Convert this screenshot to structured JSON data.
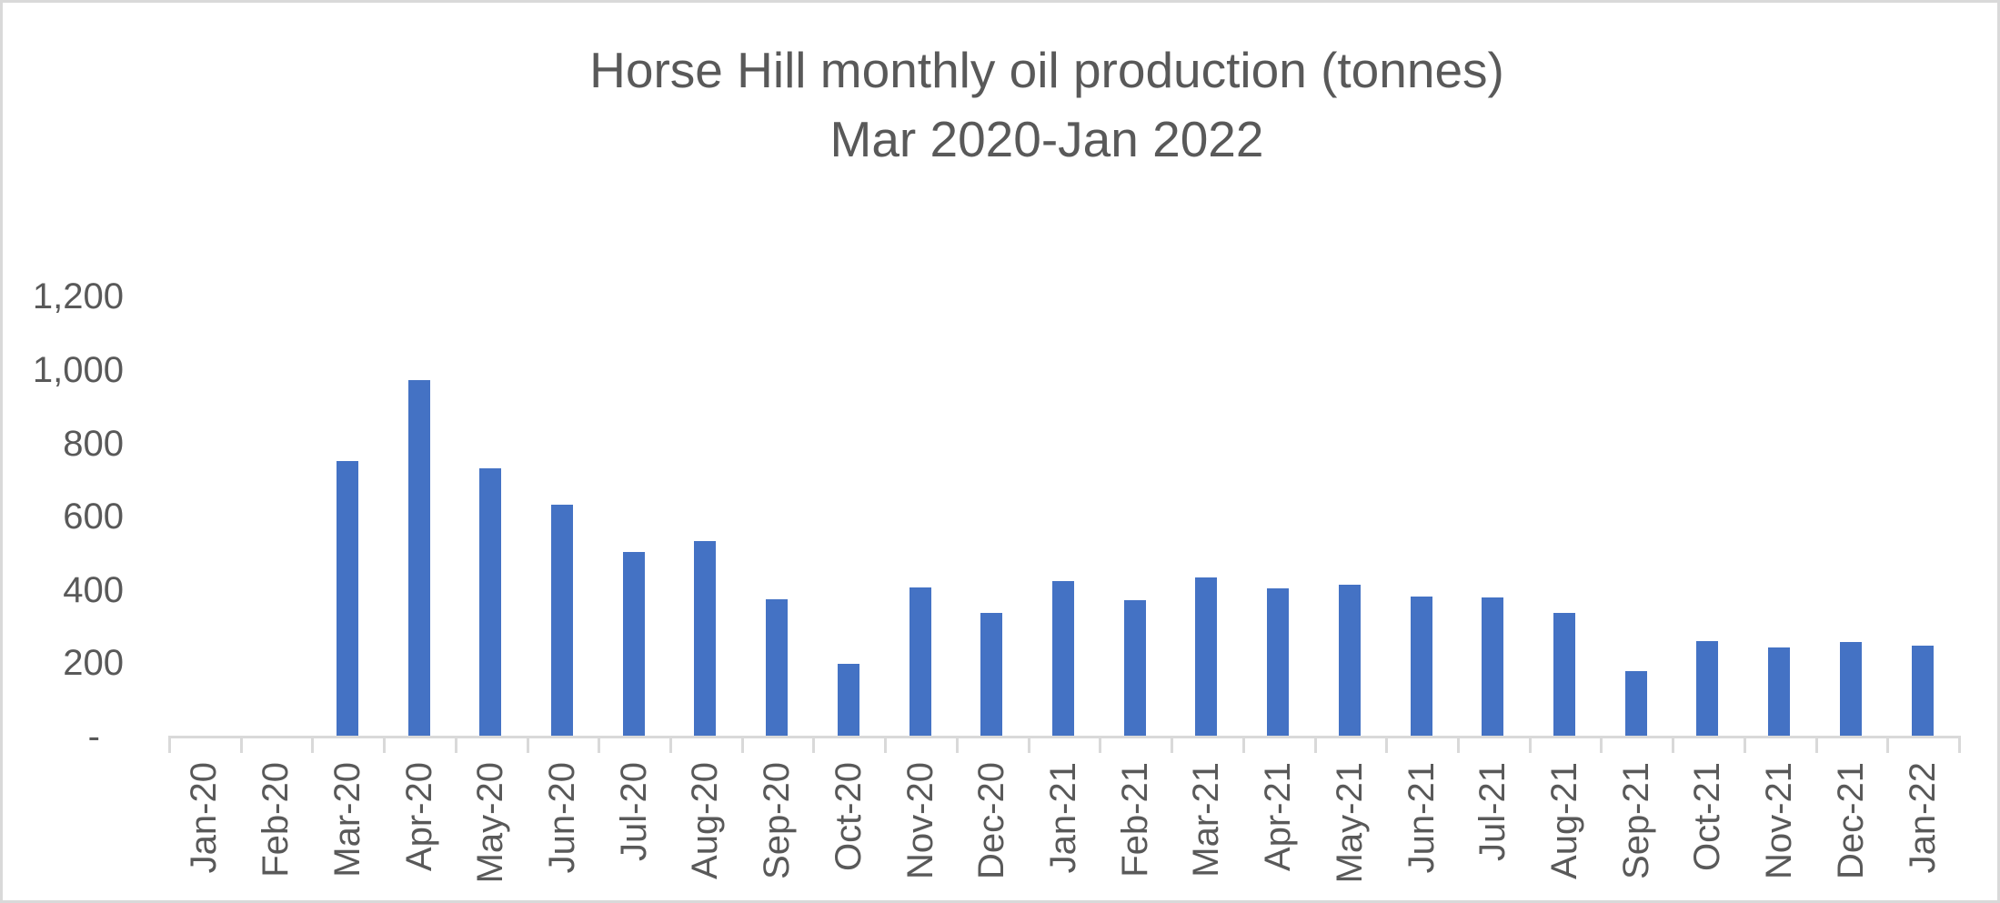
{
  "frame": {
    "background_color": "#FFFFFF",
    "border_color": "#D9D9D9"
  },
  "chart_data": {
    "type": "bar",
    "title": "Horse Hill monthly oil production (tonnes) Mar 2020-Jan 2022",
    "title_line1": "Horse Hill monthly oil production (tonnes)",
    "title_line2": "Mar 2020-Jan 2022",
    "xlabel": "",
    "ylabel": "",
    "categories": [
      "Jan-20",
      "Feb-20",
      "Mar-20",
      "Apr-20",
      "May-20",
      "Jun-20",
      "Jul-20",
      "Aug-20",
      "Sep-20",
      "Oct-20",
      "Nov-20",
      "Dec-20",
      "Jan-21",
      "Feb-21",
      "Mar-21",
      "Apr-21",
      "May-21",
      "Jun-21",
      "Jul-21",
      "Aug-21",
      "Sep-21",
      "Oct-21",
      "Nov-21",
      "Dec-21",
      "Jan-22"
    ],
    "values": [
      0,
      0,
      750,
      970,
      730,
      631,
      501,
      530,
      372,
      197,
      404,
      335,
      421,
      369,
      431,
      402,
      413,
      380,
      377,
      335,
      177,
      258,
      240,
      256,
      246
    ],
    "ylim": [
      0,
      1200
    ],
    "y_tick_interval": 200,
    "y_ticks": [
      {
        "label": "1,200",
        "value": 1200
      },
      {
        "label": "1,000",
        "value": 1000
      },
      {
        "label": "800",
        "value": 800
      },
      {
        "label": "600",
        "value": 600
      },
      {
        "label": "400",
        "value": 400
      },
      {
        "label": "200",
        "value": 200
      },
      {
        "label": "-",
        "value": 0
      }
    ],
    "grid": "off",
    "legend_position": "none",
    "bar_color": "#4472C4",
    "axis_line_color": "#D9D9D9",
    "text_color": "#595959"
  }
}
